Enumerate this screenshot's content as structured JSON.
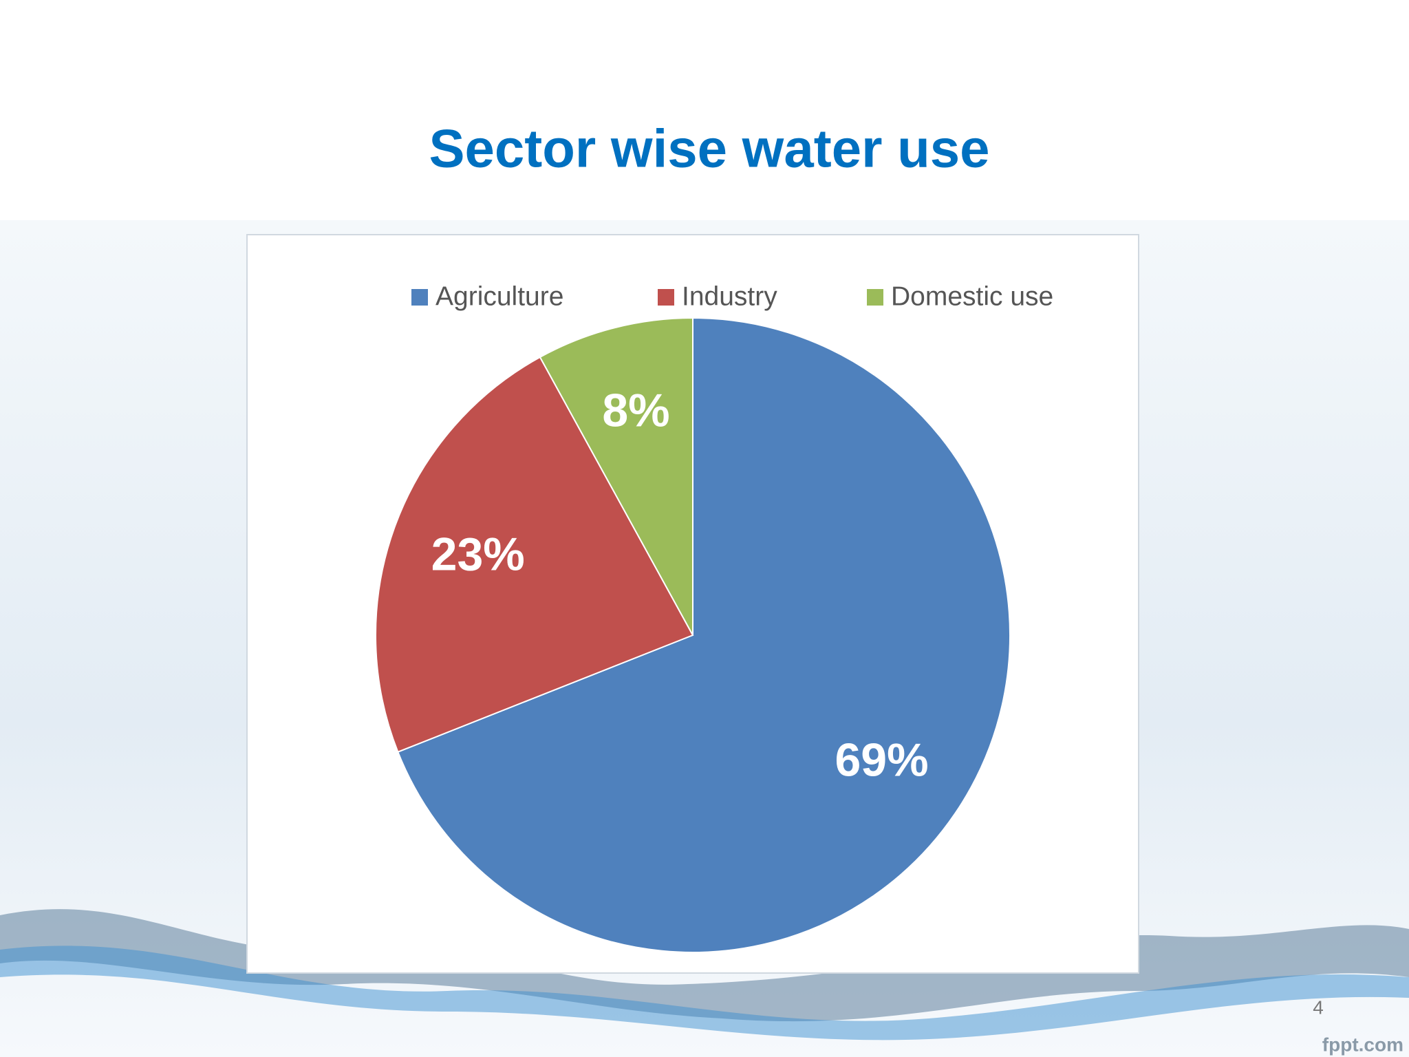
{
  "chart_data": {
    "type": "pie",
    "title": "Sector wise water use",
    "categories": [
      "Agriculture",
      "Industry",
      "Domestic use"
    ],
    "values": [
      69,
      23,
      8
    ],
    "value_labels": [
      "69%",
      "23%",
      "8%"
    ],
    "colors": [
      "#4f81bd",
      "#c0504d",
      "#9bbb59"
    ],
    "legend": "top"
  },
  "slide_number": "4",
  "watermark": "fppt.com"
}
